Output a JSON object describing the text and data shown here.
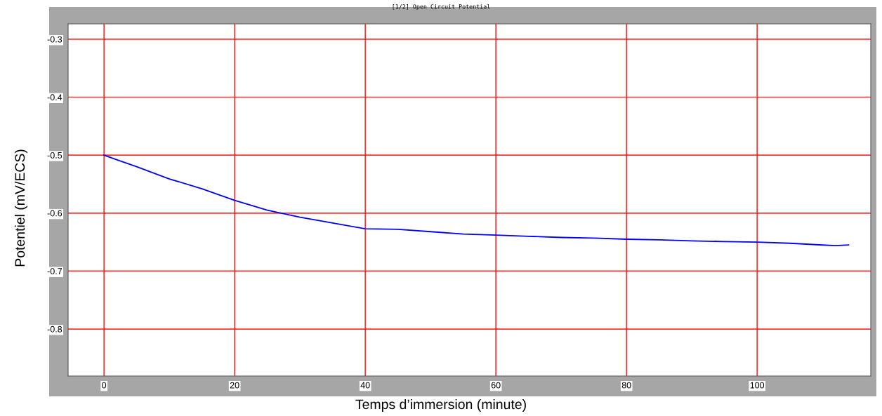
{
  "chart_data": {
    "type": "line",
    "title": "[1/2] Open Circuit Potential",
    "xlabel": "Temps d’immersion (minute)",
    "ylabel": "Potentiel (mV/ECS)",
    "series": [
      {
        "color": "#0000ff",
        "x": [
          0,
          2,
          5,
          10,
          15,
          20,
          25,
          30,
          35,
          40,
          45,
          50,
          55,
          60,
          65,
          70,
          75,
          80,
          85,
          90,
          95,
          100,
          105,
          110,
          112,
          114
        ],
        "values": [
          -0.5,
          -0.508,
          -0.52,
          -0.541,
          -0.558,
          -0.578,
          -0.595,
          -0.607,
          -0.617,
          -0.627,
          -0.628,
          -0.632,
          -0.636,
          -0.638,
          -0.64,
          -0.642,
          -0.643,
          -0.645,
          -0.646,
          -0.648,
          -0.649,
          -0.65,
          -0.652,
          -0.655,
          -0.656,
          -0.655
        ]
      }
    ],
    "xlim": [
      -5.5,
      117.4
    ],
    "ylim": [
      -0.881,
      -0.2735
    ],
    "xticks": [
      0,
      20,
      40,
      60,
      80,
      100
    ],
    "yticks": [
      -0.3,
      -0.4,
      -0.5,
      -0.6,
      -0.7,
      -0.8
    ],
    "grid": true,
    "marker": "none",
    "line_style": "solid"
  }
}
